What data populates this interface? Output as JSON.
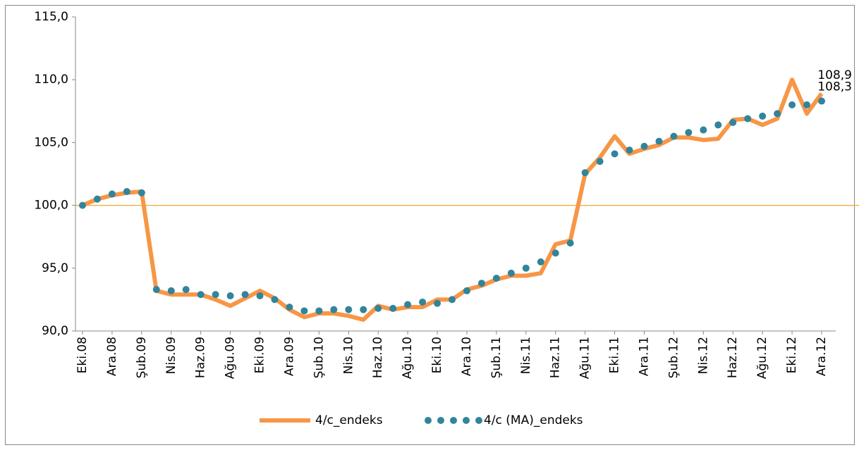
{
  "chart_data": {
    "type": "line",
    "categories": [
      "Eki.08",
      null,
      "Ara.08",
      null,
      "Şub.09",
      null,
      "Nis.09",
      null,
      "Haz.09",
      null,
      "Ağu.09",
      null,
      "Eki.09",
      null,
      "Ara.09",
      null,
      "Şub.10",
      null,
      "Nis.10",
      null,
      "Haz.10",
      null,
      "Ağu.10",
      null,
      "Eki.10",
      null,
      "Ara.10",
      null,
      "Şub.11",
      null,
      "Nis.11",
      null,
      "Haz.11",
      null,
      "Ağu.11",
      null,
      "Eki.11",
      null,
      "Ara.11",
      null,
      "Şub.12",
      null,
      "Nis.12",
      null,
      "Haz.12",
      null,
      "Ağu.12",
      null,
      "Eki.12",
      null,
      "Ara.12"
    ],
    "series": [
      {
        "name": "4/c_endeks",
        "color": "#f79646",
        "style": "line",
        "values": [
          100.0,
          100.5,
          100.8,
          101.0,
          101.1,
          93.2,
          92.9,
          92.9,
          92.9,
          92.5,
          92.0,
          92.6,
          93.2,
          92.6,
          91.7,
          91.1,
          91.4,
          91.4,
          91.2,
          90.9,
          92.0,
          91.7,
          91.9,
          91.9,
          92.5,
          92.5,
          93.3,
          93.6,
          94.1,
          94.4,
          94.4,
          94.6,
          96.9,
          97.2,
          102.5,
          103.8,
          105.5,
          104.1,
          104.5,
          104.8,
          105.4,
          105.4,
          105.2,
          105.3,
          106.8,
          106.9,
          106.4,
          106.9,
          110.0,
          107.3,
          108.9
        ],
        "value_labels": [
          null,
          null,
          null,
          null,
          null,
          null,
          null,
          null,
          null,
          null,
          null,
          null,
          null,
          null,
          null,
          null,
          null,
          null,
          null,
          null,
          null,
          null,
          null,
          null,
          null,
          null,
          null,
          null,
          null,
          null,
          null,
          null,
          null,
          null,
          null,
          null,
          null,
          null,
          null,
          null,
          null,
          null,
          null,
          null,
          null,
          null,
          null,
          null,
          null,
          null,
          "108,9"
        ]
      },
      {
        "name": "4/c (MA)_endeks",
        "color": "#31849b",
        "style": "dots",
        "values": [
          100.0,
          100.5,
          100.9,
          101.1,
          101.0,
          93.3,
          93.2,
          93.3,
          92.9,
          92.9,
          92.8,
          92.9,
          92.8,
          92.5,
          91.9,
          91.6,
          91.6,
          91.7,
          91.7,
          91.7,
          91.8,
          91.8,
          92.1,
          92.3,
          92.2,
          92.5,
          93.2,
          93.8,
          94.2,
          94.6,
          95.0,
          95.5,
          96.2,
          97.0,
          102.6,
          103.5,
          104.1,
          104.4,
          104.7,
          105.1,
          105.5,
          105.8,
          106.0,
          106.4,
          106.6,
          106.9,
          107.1,
          107.3,
          108.0,
          108.0,
          108.3
        ],
        "value_labels": [
          null,
          null,
          null,
          null,
          null,
          null,
          null,
          null,
          null,
          null,
          null,
          null,
          null,
          null,
          null,
          null,
          null,
          null,
          null,
          null,
          null,
          null,
          null,
          null,
          null,
          null,
          null,
          null,
          null,
          null,
          null,
          null,
          null,
          null,
          null,
          null,
          null,
          null,
          null,
          null,
          null,
          null,
          null,
          null,
          null,
          null,
          null,
          null,
          null,
          null,
          "108,3"
        ]
      }
    ],
    "ylim": [
      90,
      115
    ],
    "yticks": [
      {
        "value": 90,
        "label": "90,0"
      },
      {
        "value": 95,
        "label": "95,0"
      },
      {
        "value": 100,
        "label": "100,0"
      },
      {
        "value": 105,
        "label": "105,0"
      },
      {
        "value": 110,
        "label": "110,0"
      },
      {
        "value": 115,
        "label": "115,0"
      }
    ],
    "hline": {
      "value": 100,
      "color": "#f0a830"
    },
    "grid": false,
    "legend": "bottom"
  }
}
